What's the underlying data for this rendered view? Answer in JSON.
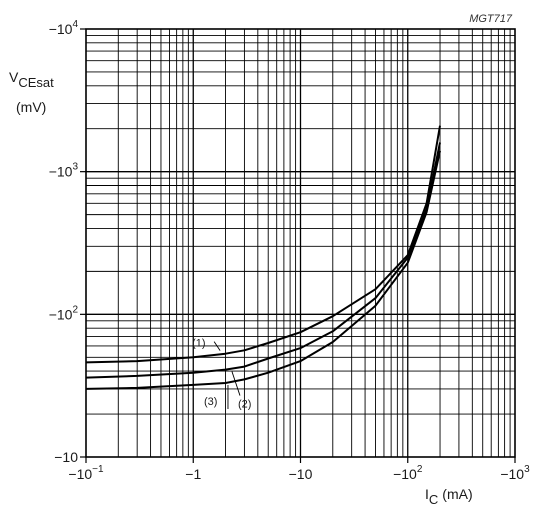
{
  "chart_data": {
    "type": "line",
    "figure_code": "MGT717",
    "ylabel": {
      "main": "V",
      "sub": "CEsat",
      "unit": "(mV)"
    },
    "xlabel": {
      "main": "I",
      "sub": "C",
      "unit": "(mA)"
    },
    "x_scale": "log",
    "y_scale": "log",
    "x_range": [
      -0.1,
      -1000
    ],
    "y_range": [
      -10,
      -10000
    ],
    "grid": true,
    "x_ticks": [
      {
        "base": "−10",
        "exp": "−1",
        "value": -0.1
      },
      {
        "base": "−1",
        "exp": "",
        "value": -1
      },
      {
        "base": "−10",
        "exp": "",
        "value": -10
      },
      {
        "base": "−10",
        "exp": "2",
        "value": -100
      },
      {
        "base": "−10",
        "exp": "3",
        "value": -1000
      }
    ],
    "y_ticks": [
      {
        "base": "−10",
        "exp": "",
        "value": -10
      },
      {
        "base": "−10",
        "exp": "2",
        "value": -100
      },
      {
        "base": "−10",
        "exp": "3",
        "value": -1000
      },
      {
        "base": "−10",
        "exp": "4",
        "value": -10000
      }
    ],
    "series": [
      {
        "name": "(1)",
        "x": [
          -0.1,
          -0.3,
          -1,
          -2,
          -3,
          -5,
          -10,
          -20,
          -50,
          -100,
          -150,
          -200
        ],
        "y": [
          -46,
          -47,
          -50,
          -53,
          -56,
          -63,
          -75,
          -97,
          -150,
          -260,
          -600,
          -2100
        ]
      },
      {
        "name": "(2)",
        "x": [
          -0.1,
          -0.3,
          -1,
          -2,
          -3,
          -5,
          -10,
          -20,
          -50,
          -100,
          -150,
          -200
        ],
        "y": [
          -36,
          -37,
          -39,
          -41,
          -43,
          -49,
          -58,
          -76,
          -130,
          -250,
          -550,
          -1600
        ]
      },
      {
        "name": "(3)",
        "x": [
          -0.1,
          -0.3,
          -1,
          -2,
          -3,
          -5,
          -10,
          -20,
          -50,
          -100,
          -150,
          -200
        ],
        "y": [
          -30,
          -30.5,
          -32,
          -33,
          -35,
          -39,
          -47,
          -64,
          -115,
          -230,
          -520,
          -1400
        ]
      }
    ]
  }
}
